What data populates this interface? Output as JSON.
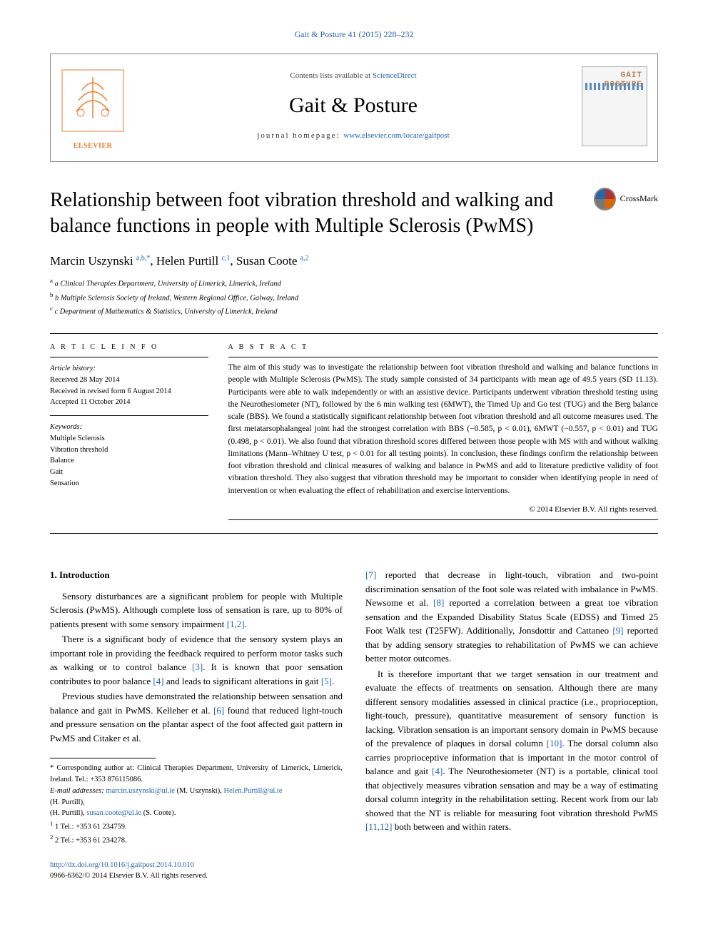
{
  "top_citation": "Gait & Posture 41 (2015) 228–232",
  "header": {
    "contents_prefix": "Contents lists available at ",
    "contents_link": "ScienceDirect",
    "journal_name": "Gait & Posture",
    "homepage_prefix": "journal homepage: ",
    "homepage_link": "www.elsevier.com/locate/gaitpost",
    "publisher": "ELSEVIER",
    "cover_line1": "GAIT",
    "cover_line2": "POSTURE"
  },
  "crossmark_label": "CrossMark",
  "title": "Relationship between foot vibration threshold and walking and balance functions in people with Multiple Sclerosis (PwMS)",
  "authors_html": "Marcin Uszynski <sup>a,b,*</sup>, Helen Purtill <sup>c,1</sup>, Susan Coote <sup>a,2</sup>",
  "affiliations": [
    "a Clinical Therapies Department, University of Limerick, Limerick, Ireland",
    "b Multiple Sclerosis Society of Ireland, Western Regional Office, Galway, Ireland",
    "c Department of Mathematics & Statistics, University of Limerick, Ireland"
  ],
  "article_info": {
    "heading": "A R T I C L E   I N F O",
    "history_label": "Article history:",
    "received": "Received 28 May 2014",
    "revised": "Received in revised form 6 August 2014",
    "accepted": "Accepted 11 October 2014",
    "keywords_label": "Keywords:",
    "keywords": [
      "Multiple Sclerosis",
      "Vibration threshold",
      "Balance",
      "Gait",
      "Sensation"
    ]
  },
  "abstract": {
    "heading": "A B S T R A C T",
    "text": "The aim of this study was to investigate the relationship between foot vibration threshold and walking and balance functions in people with Multiple Sclerosis (PwMS). The study sample consisted of 34 participants with mean age of 49.5 years (SD 11.13). Participants were able to walk independently or with an assistive device. Participants underwent vibration threshold testing using the Neurothesiometer (NT), followed by the 6 min walking test (6MWT), the Timed Up and Go test (TUG) and the Berg balance scale (BBS). We found a statistically significant relationship between foot vibration threshold and all outcome measures used. The first metatarsophalangeal joint had the strongest correlation with BBS (−0.585, p < 0.01), 6MWT (−0.557, p < 0.01) and TUG (0.498, p < 0.01). We also found that vibration threshold scores differed between those people with MS with and without walking limitations (Mann–Whitney U test, p < 0.01 for all testing points). In conclusion, these findings confirm the relationship between foot vibration threshold and clinical measures of walking and balance in PwMS and add to literature predictive validity of foot vibration threshold. They also suggest that vibration threshold may be important to consider when identifying people in need of intervention or when evaluating the effect of rehabilitation and exercise interventions.",
    "copyright": "© 2014 Elsevier B.V. All rights reserved."
  },
  "body": {
    "section_heading": "1. Introduction",
    "paragraphs": [
      "Sensory disturbances are a significant problem for people with Multiple Sclerosis (PwMS). Although complete loss of sensation is rare, up to 80% of patients present with some sensory impairment [1,2].",
      "There is a significant body of evidence that the sensory system plays an important role in providing the feedback required to perform motor tasks such as walking or to control balance [3]. It is known that poor sensation contributes to poor balance [4] and leads to significant alterations in gait [5].",
      "Previous studies have demonstrated the relationship between sensation and balance and gait in PwMS. Kelleher et al. [6] found that reduced light-touch and pressure sensation on the plantar aspect of the foot affected gait pattern in PwMS and Citaker et al.",
      "[7] reported that decrease in light-touch, vibration and two-point discrimination sensation of the foot sole was related with imbalance in PwMS. Newsome et al. [8] reported a correlation between a great toe vibration sensation and the Expanded Disability Status Scale (EDSS) and Timed 25 Foot Walk test (T25FW). Additionally, Jonsdottir and Cattaneo [9] reported that by adding sensory strategies to rehabilitation of PwMS we can achieve better motor outcomes.",
      "It is therefore important that we target sensation in our treatment and evaluate the effects of treatments on sensation. Although there are many different sensory modalities assessed in clinical practice (i.e., proprioception, light-touch, pressure), quantitative measurement of sensory function is lacking. Vibration sensation is an important sensory domain in PwMS because of the prevalence of plaques in dorsal column [10]. The dorsal column also carries proprioceptive information that is important in the motor control of balance and gait [4]. The Neurothesiometer (NT) is a portable, clinical tool that objectively measures vibration sensation and may be a way of estimating dorsal column integrity in the rehabilitation setting. Recent work from our lab showed that the NT is reliable for measuring foot vibration threshold PwMS [11,12] both between and within raters."
    ]
  },
  "footnotes": {
    "corr": "* Corresponding author at: Clinical Therapies Department, University of Limerick, Limerick, Ireland. Tel.: +353 876115086.",
    "email_label": "E-mail addresses: ",
    "email1": "marcin.uszynski@ul.ie",
    "email1_name": " (M. Uszynski), ",
    "email2": "Helen.Purtill@ul.ie",
    "email2_name": " (H. Purtill), ",
    "email3": "susan.coote@ul.ie",
    "email3_name": " (S. Coote).",
    "tel1": "1 Tel.: +353 61 234759.",
    "tel2": "2 Tel.: +353 61 234278."
  },
  "doi": {
    "link": "http://dx.doi.org/10.1016/j.gaitpost.2014.10.010",
    "issn_line": "0966-6362/© 2014 Elsevier B.V. All rights reserved."
  },
  "colors": {
    "link": "#2662b3",
    "elsevier_orange": "#eb7c2e",
    "text": "#000000",
    "border": "#8a8a8a"
  }
}
